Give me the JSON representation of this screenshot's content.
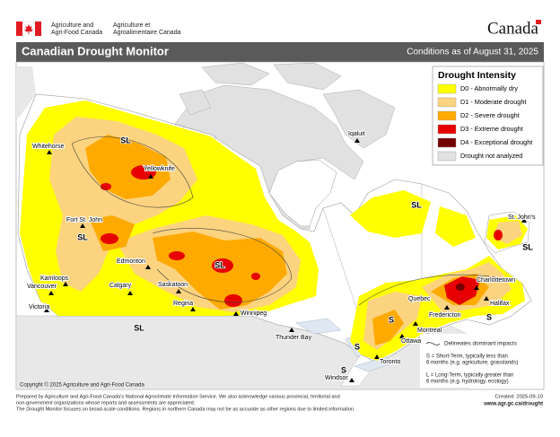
{
  "header": {
    "agency_en": [
      "Agriculture and",
      "Agri-Food Canada"
    ],
    "agency_fr": [
      "Agriculture et",
      "Agroalimentaire Canada"
    ],
    "wordmark": "Canada"
  },
  "title": "Canadian Drought Monitor",
  "conditions": "Conditions as of August 31, 2025",
  "legend": {
    "title": "Drought Intensity",
    "items": [
      {
        "label": "D0 - Abnormally dry",
        "color": "#ffff00"
      },
      {
        "label": "D1 - Moderate drought",
        "color": "#fcd37f"
      },
      {
        "label": "D2 - Severe drought",
        "color": "#ffaa00"
      },
      {
        "label": "D3 - Extreme drought",
        "color": "#e60000"
      },
      {
        "label": "D4 - Exceptional drought",
        "color": "#730000"
      },
      {
        "label": "Drought not analyzed",
        "color": "#e1e1e1"
      }
    ]
  },
  "cities": [
    "Whitehorse",
    "Yellowknife",
    "Iqaluit",
    "Fort St. John",
    "Edmonton",
    "Kamloops",
    "Calgary",
    "Saskatoon",
    "Regina",
    "Winnipeg",
    "Vancouver",
    "Victoria",
    "Thunder Bay",
    "Quebec",
    "Montreal",
    "Ottawa",
    "Toronto",
    "Windsor",
    "Fredericton",
    "Charlottetown",
    "Halifax",
    "St. John's"
  ],
  "impact_labels": [
    "SL",
    "SL",
    "SL",
    "SL",
    "SL",
    "S",
    "S",
    "SL",
    "S",
    "S"
  ],
  "impact_legend": {
    "line": "Delineates dominant impacts",
    "short": [
      "S = Short-Term, typically less than",
      "6 months (e.g. agriculture, grasslands)"
    ],
    "long": [
      "L = Long-Term, typically greater  than",
      "6 months (e.g. hydrology, ecology)"
    ]
  },
  "copyright": "Copyright © 2025 Agriculture and Agri-Food Canada",
  "footer": {
    "lines": [
      "Prepared by Agriculture and Agri-Food Canada's National Agroclimate Information Service.  We also acknowledge various provincial, territorial and",
      "non-government organizations whose reports and assessments are appreciated.",
      "The Drought Monitor focuses on broad-scale conditions.  Regions in northern Canada may not be as accurate as other regions due to limited information."
    ],
    "created": "Created: 2025-09-10",
    "url": "www.agr.gc.ca/drought"
  }
}
